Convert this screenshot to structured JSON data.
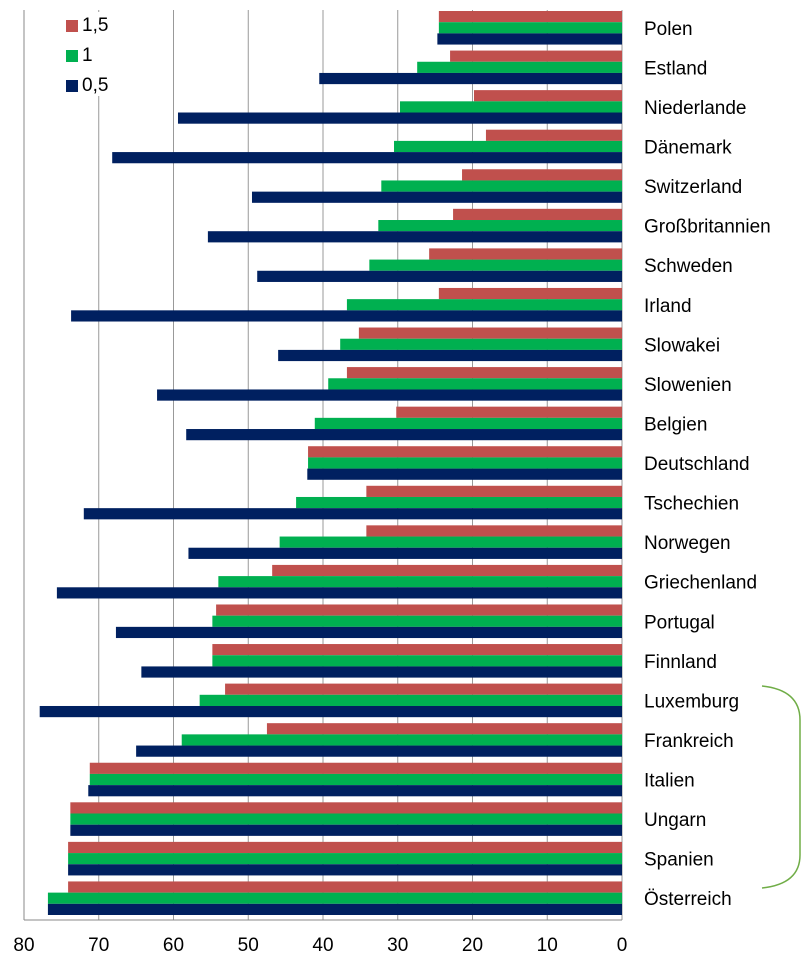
{
  "chart_data": {
    "type": "barh",
    "categories": [
      "Polen",
      "Estland",
      "Niederlande",
      "Dänemark",
      "Switzerland",
      "Großbritannien",
      "Schweden",
      "Irland",
      "Slowakei",
      "Slowenien",
      "Belgien",
      "Deutschland",
      "Tschechien",
      "Norwegen",
      "Griechenland",
      "Portugal",
      "Finnland",
      "Luxemburg",
      "Frankreich",
      "Italien",
      "Ungarn",
      "Spanien",
      "Österreich"
    ],
    "series": [
      {
        "name": "1,5",
        "color": "#c0504d",
        "values": [
          24.5,
          23,
          19.8,
          18.2,
          21.4,
          22.6,
          25.8,
          24.5,
          35.2,
          36.8,
          30.2,
          42,
          34.2,
          34.2,
          46.8,
          54.3,
          54.8,
          53.1,
          47.5,
          71.2,
          73.8,
          74.1,
          74.1
        ]
      },
      {
        "name": "1",
        "color": "#00b050",
        "values": [
          24.5,
          27.4,
          29.7,
          30.5,
          32.2,
          32.6,
          33.8,
          36.8,
          37.7,
          39.3,
          41.1,
          42,
          43.6,
          45.8,
          54,
          54.8,
          54.8,
          56.5,
          58.9,
          71.2,
          73.8,
          74.1,
          76.8
        ]
      },
      {
        "name": "0,5",
        "color": "#002060",
        "values": [
          24.7,
          40.5,
          59.4,
          68.2,
          49.5,
          55.4,
          48.8,
          73.7,
          46,
          62.2,
          58.3,
          42.1,
          72,
          58,
          75.6,
          67.7,
          64.3,
          77.9,
          65,
          71.4,
          73.8,
          74.1,
          76.8
        ]
      }
    ],
    "xlim": [
      0,
      80
    ],
    "xticks": [
      0,
      10,
      20,
      30,
      40,
      50,
      60,
      70,
      80
    ],
    "reversed": true,
    "grid": true,
    "legend": "upper left"
  }
}
